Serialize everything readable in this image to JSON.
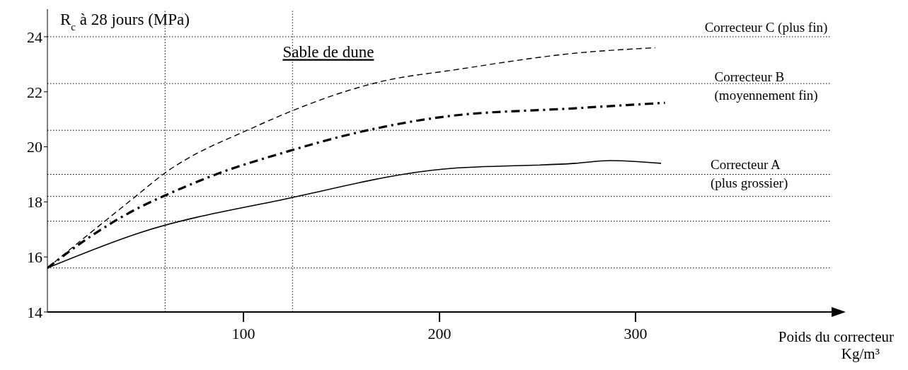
{
  "chart_data": {
    "type": "line",
    "ylabel": "R$_{c}$ à 28 jours (MPa)",
    "xlabel": "Poids du correcteur Kg/m³",
    "annotations": [
      "Sable de dune"
    ],
    "xlim": [
      0,
      400
    ],
    "xticks": [
      100,
      200,
      300
    ],
    "ylim": [
      14,
      25
    ],
    "yticks": [
      14,
      16,
      18,
      20,
      22,
      24
    ],
    "grid": false,
    "marker": "none",
    "series": [
      {
        "name": "Correcteur C (plus fin)",
        "color": "#000000",
        "line_style": "dashed",
        "x": [
          0,
          12,
          45,
          59,
          105,
          172,
          208,
          269,
          310
        ],
        "values": [
          15.6,
          16.3,
          18.2,
          19.0,
          20.7,
          22.4,
          22.8,
          23.4,
          23.6
        ]
      },
      {
        "name": "Correcteur B (moyennement  fin)",
        "color": "#000000",
        "line_style": "dashdot",
        "x": [
          0,
          19,
          47,
          59,
          86,
          121,
          157,
          203,
          269,
          315
        ],
        "values": [
          15.6,
          16.6,
          17.8,
          18.2,
          19.0,
          19.8,
          20.5,
          21.1,
          21.4,
          21.6
        ]
      },
      {
        "name": "Correcteur A (plus grossier)",
        "color": "#000000",
        "line_style": "solid",
        "x": [
          0,
          48,
          121,
          203,
          269,
          287,
          313
        ],
        "values": [
          15.6,
          16.9,
          18.1,
          19.2,
          19.4,
          19.5,
          19.4
        ]
      }
    ],
    "ref_lines": [
      {
        "axis": "y",
        "value": 24,
        "color": "#000000",
        "line_style": "dotted"
      },
      {
        "axis": "y",
        "value": 22.3,
        "color": "#000000",
        "line_style": "dotted"
      },
      {
        "axis": "y",
        "value": 20.6,
        "color": "#000000",
        "line_style": "dotted"
      },
      {
        "axis": "y",
        "value": 19,
        "color": "#000000",
        "line_style": "dotted"
      },
      {
        "axis": "y",
        "value": 18.2,
        "color": "#000000",
        "line_style": "dotted"
      },
      {
        "axis": "y",
        "value": 17.3,
        "color": "#000000",
        "line_style": "dotted"
      },
      {
        "axis": "y",
        "value": 15.6,
        "color": "#000000",
        "line_style": "dotted"
      },
      {
        "axis": "x",
        "value": 60,
        "color": "#000000",
        "line_style": "dotted"
      },
      {
        "axis": "x",
        "value": 125,
        "color": "#000000",
        "line_style": "dotted"
      }
    ]
  }
}
